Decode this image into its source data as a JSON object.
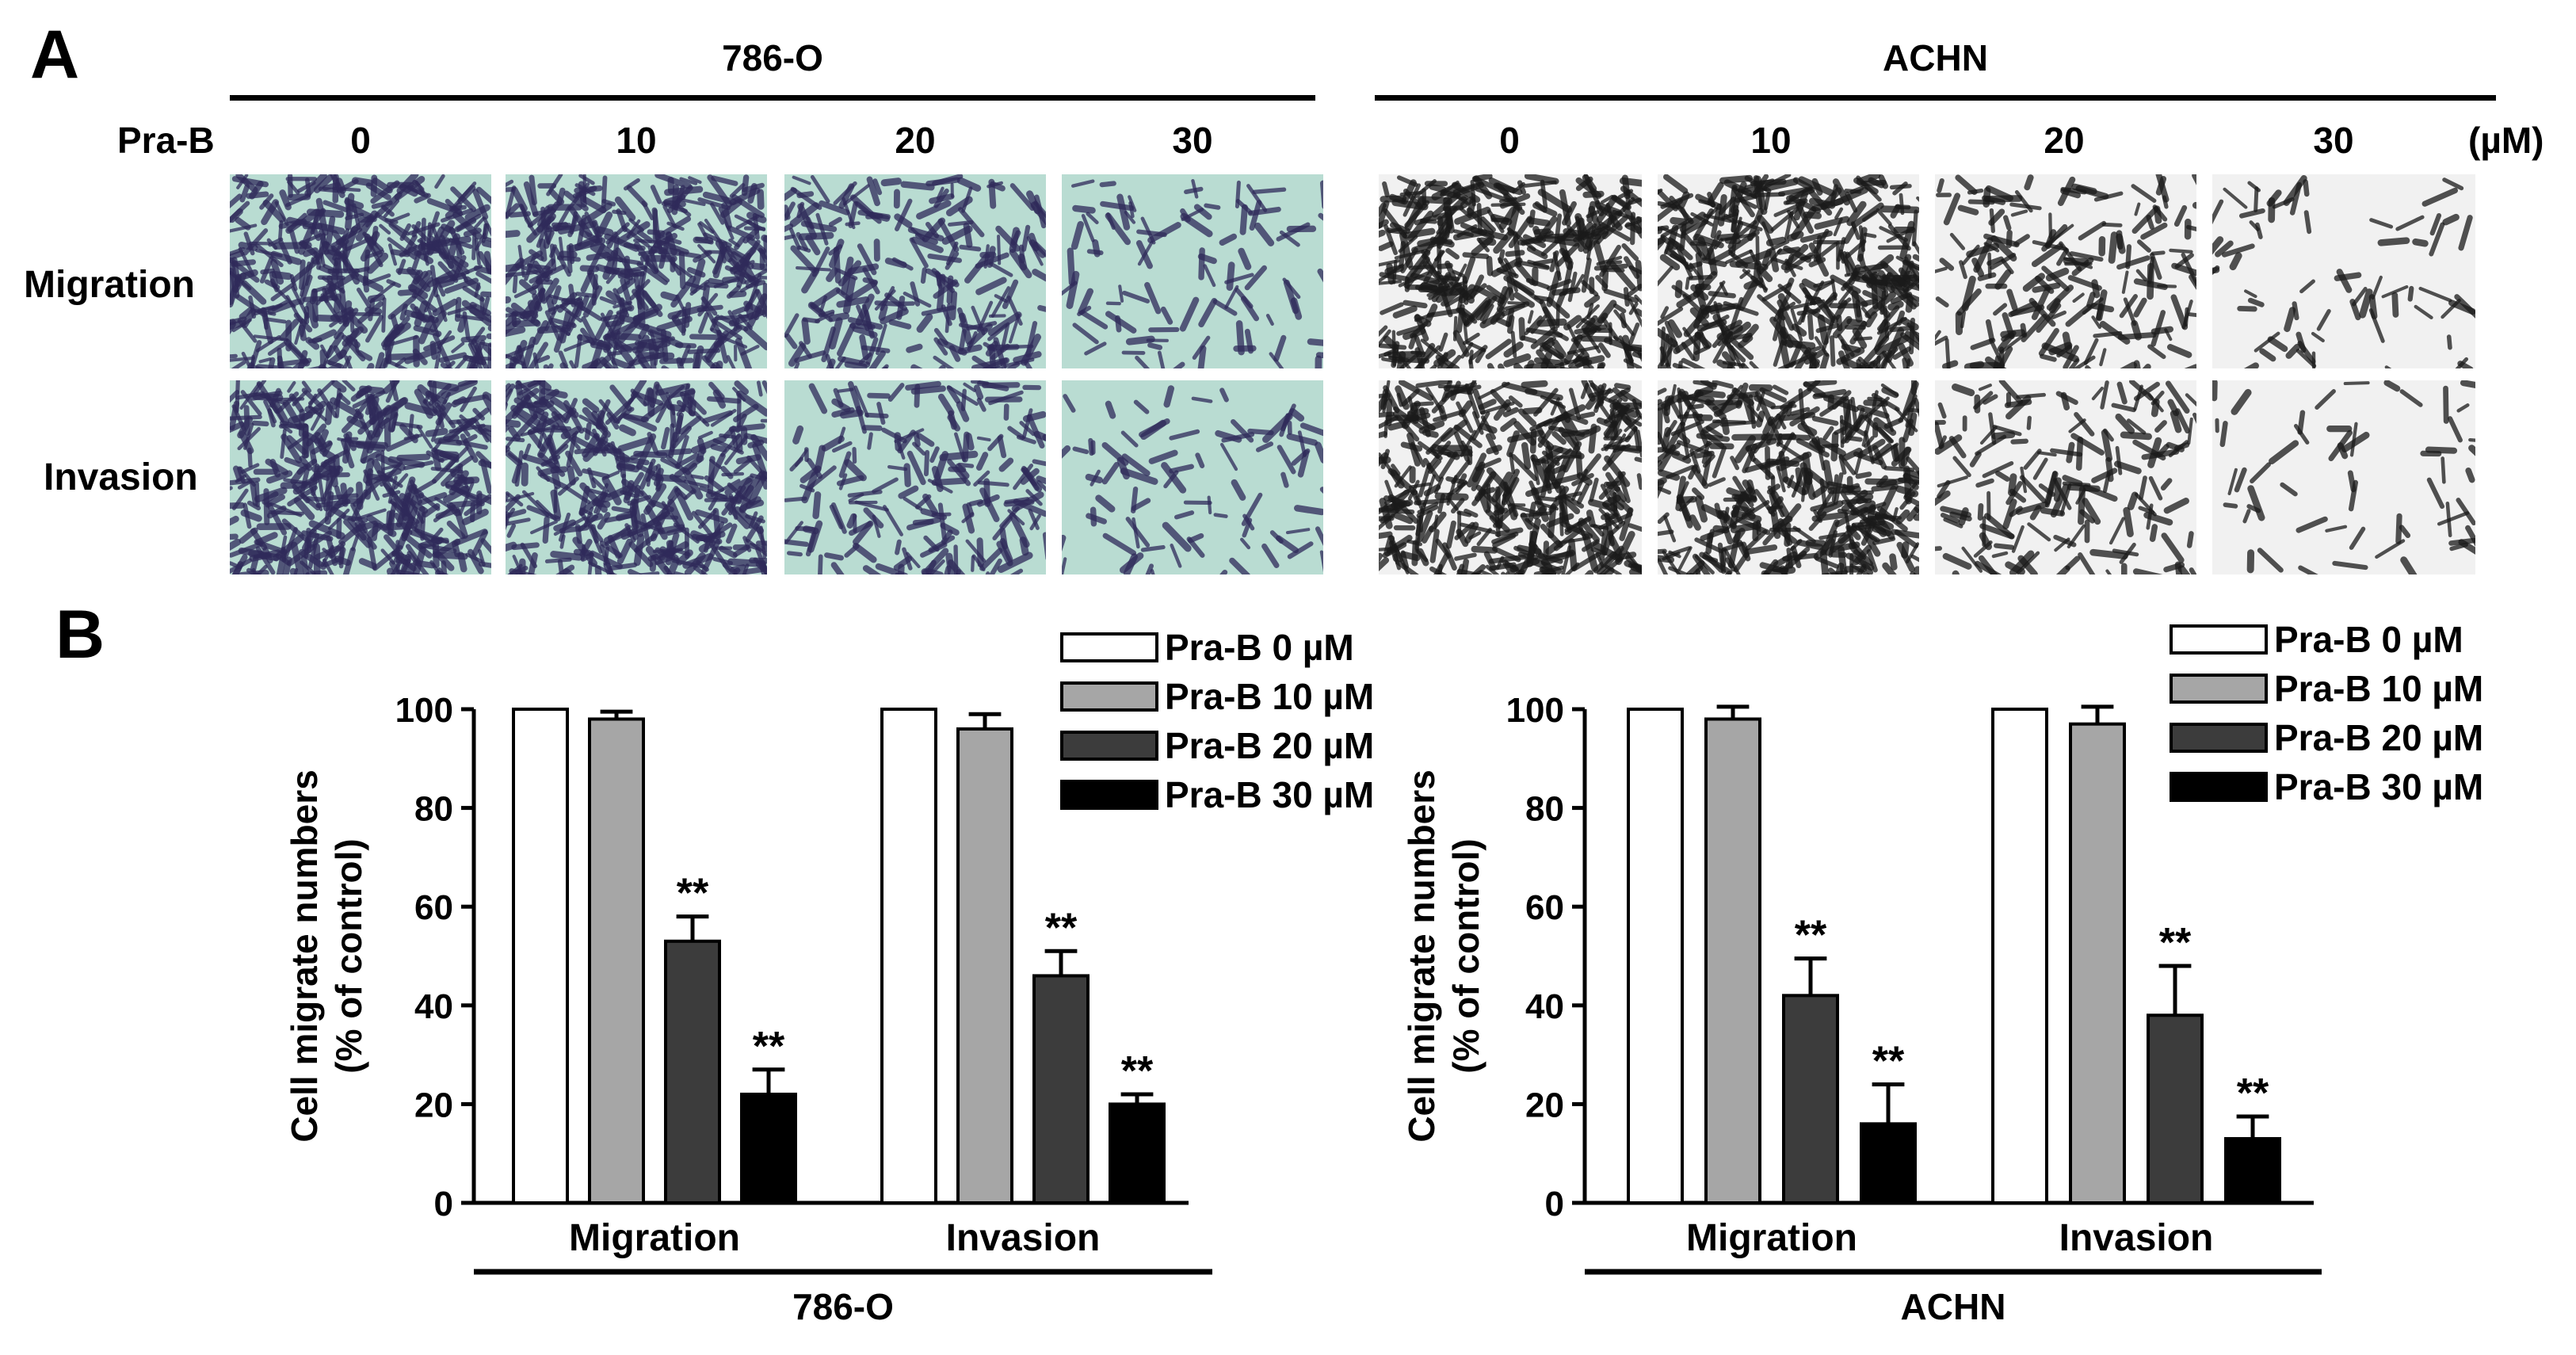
{
  "panel_a": {
    "letter": "A",
    "treatment_label": "Pra-B",
    "unit_label": "(µM)",
    "row_labels": [
      "Migration",
      "Invasion"
    ],
    "cell_lines": [
      {
        "name": "786-O",
        "doses": [
          "0",
          "10",
          "20",
          "30"
        ],
        "stain_color": "#2f2a5a",
        "background_color": "#b9dcd2"
      },
      {
        "name": "ACHN",
        "doses": [
          "0",
          "10",
          "20",
          "30"
        ],
        "stain_color": "#1a1a1a",
        "background_color": "#f1f1f1"
      }
    ],
    "cell_density": {
      "786-O": {
        "Migration": [
          1.0,
          0.98,
          0.53,
          0.22
        ],
        "Invasion": [
          1.0,
          0.96,
          0.46,
          0.2
        ]
      },
      "ACHN": {
        "Migration": [
          1.0,
          0.98,
          0.42,
          0.16
        ],
        "Invasion": [
          1.0,
          0.97,
          0.38,
          0.13
        ]
      }
    }
  },
  "panel_b": {
    "letter": "B"
  },
  "chart_data": [
    {
      "type": "bar",
      "group_label": "786-O",
      "ylabel": "Cell migrate numbers (% of control)",
      "ylabel_lines": [
        "Cell migrate numbers",
        "(% of control)"
      ],
      "ylim": [
        0,
        100
      ],
      "yticks": [
        0,
        20,
        40,
        60,
        80,
        100
      ],
      "categories": [
        "Migration",
        "Invasion"
      ],
      "series": [
        {
          "name": "Pra-B  0 µM",
          "color": "#ffffff",
          "values": [
            100,
            100
          ],
          "errors": [
            0,
            0
          ],
          "sig": [
            "",
            ""
          ]
        },
        {
          "name": "Pra-B 10 µM",
          "color": "#a6a6a6",
          "values": [
            98,
            96
          ],
          "errors": [
            1.5,
            3
          ],
          "sig": [
            "",
            ""
          ]
        },
        {
          "name": "Pra-B 20 µM",
          "color": "#3c3c3c",
          "values": [
            53,
            46
          ],
          "errors": [
            5,
            5
          ],
          "sig": [
            "**",
            "**"
          ]
        },
        {
          "name": "Pra-B 30 µM",
          "color": "#000000",
          "values": [
            22,
            20
          ],
          "errors": [
            5,
            2
          ],
          "sig": [
            "**",
            "**"
          ]
        }
      ]
    },
    {
      "type": "bar",
      "group_label": "ACHN",
      "ylabel": "Cell migrate numbers (% of control)",
      "ylabel_lines": [
        "Cell migrate numbers",
        "(% of control)"
      ],
      "ylim": [
        0,
        100
      ],
      "yticks": [
        0,
        20,
        40,
        60,
        80,
        100
      ],
      "categories": [
        "Migration",
        "Invasion"
      ],
      "series": [
        {
          "name": "Pra-B  0 µM",
          "color": "#ffffff",
          "values": [
            100,
            100
          ],
          "errors": [
            0,
            0
          ],
          "sig": [
            "",
            ""
          ]
        },
        {
          "name": "Pra-B 10 µM",
          "color": "#a6a6a6",
          "values": [
            98,
            97
          ],
          "errors": [
            2.5,
            3.5
          ],
          "sig": [
            "",
            ""
          ]
        },
        {
          "name": "Pra-B 20 µM",
          "color": "#3c3c3c",
          "values": [
            42,
            38
          ],
          "errors": [
            7.5,
            10
          ],
          "sig": [
            "**",
            "**"
          ]
        },
        {
          "name": "Pra-B 30 µM",
          "color": "#000000",
          "values": [
            16,
            13
          ],
          "errors": [
            8,
            4.5
          ],
          "sig": [
            "**",
            "**"
          ]
        }
      ]
    }
  ]
}
